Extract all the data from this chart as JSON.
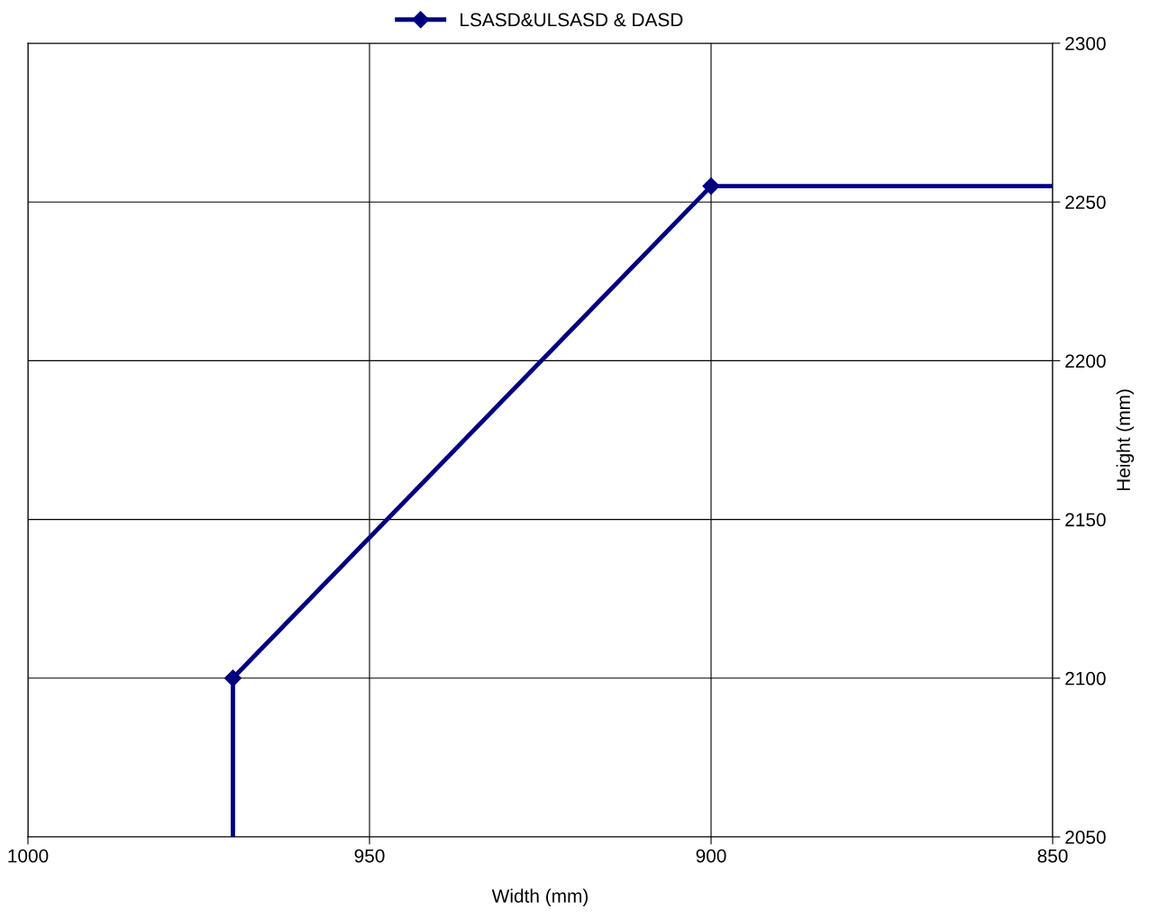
{
  "chart_data": {
    "type": "line",
    "xlabel": "Width (mm)",
    "ylabel": "Height (mm)",
    "xlim": [
      1000,
      850
    ],
    "xticks": [
      1000,
      950,
      900,
      850
    ],
    "ylim": [
      2050,
      2300
    ],
    "yticks": [
      2050,
      2100,
      2150,
      2200,
      2250,
      2300
    ],
    "series": [
      {
        "name": "LSASD&ULSASD & DASD",
        "color": "#000080",
        "x": [
          970,
          970,
          900,
          850
        ],
        "values": [
          2050,
          2100,
          2255,
          2255
        ]
      }
    ],
    "marker": "diamond",
    "line_style": "solid",
    "grid": true,
    "legend": "top"
  }
}
